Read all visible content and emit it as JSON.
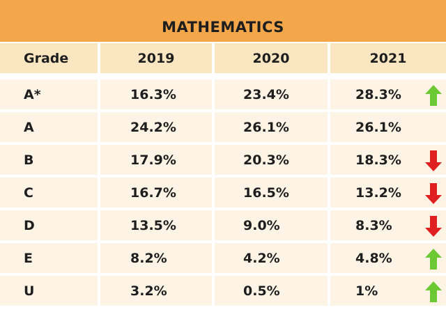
{
  "title": "MATHEMATICS",
  "chart_data": {
    "type": "table",
    "title": "MATHEMATICS",
    "columns": [
      "Grade",
      "2019",
      "2020",
      "2021"
    ],
    "rows": [
      {
        "grade": "A*",
        "y2019": "16.3%",
        "y2020": "23.4%",
        "y2021": "28.3%",
        "trend": "up"
      },
      {
        "grade": "A",
        "y2019": "24.2%",
        "y2020": "26.1%",
        "y2021": "26.1%",
        "trend": "none"
      },
      {
        "grade": "B",
        "y2019": "17.9%",
        "y2020": "20.3%",
        "y2021": "18.3%",
        "trend": "down"
      },
      {
        "grade": "C",
        "y2019": "16.7%",
        "y2020": "16.5%",
        "y2021": "13.2%",
        "trend": "down"
      },
      {
        "grade": "D",
        "y2019": "13.5%",
        "y2020": "9.0%",
        "y2021": "8.3%",
        "trend": "down"
      },
      {
        "grade": "E",
        "y2019": "8.2%",
        "y2020": "4.2%",
        "y2021": "4.8%",
        "trend": "up"
      },
      {
        "grade": "U",
        "y2019": "3.2%",
        "y2020": "0.5%",
        "y2021": "1%",
        "trend": "up"
      }
    ]
  },
  "colors": {
    "title_bar": "#f4a64a",
    "header_cell": "#fbe6c2",
    "body_cell": "#fdf4e6",
    "up_arrow": "#6cc833",
    "down_arrow": "#e02020"
  }
}
